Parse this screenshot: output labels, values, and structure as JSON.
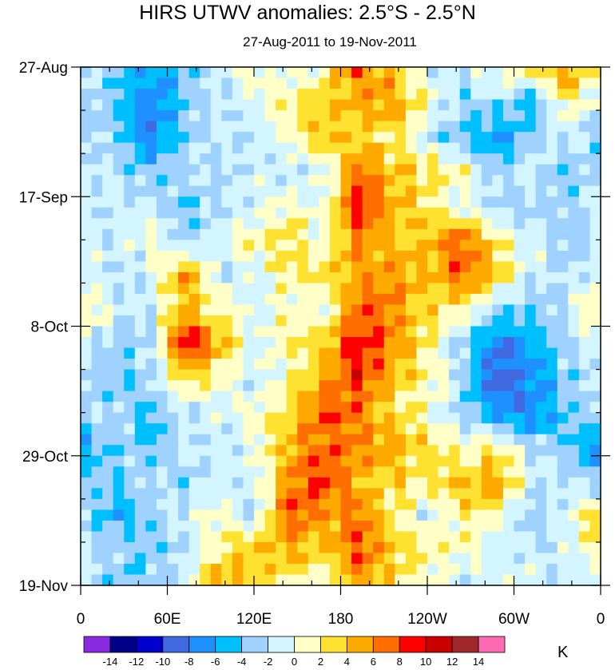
{
  "chart_data": {
    "type": "heatmap",
    "title": "HIRS UTWV anomalies: 2.5°S - 2.5°N",
    "subtitle": "27-Aug-2011 to 19-Nov-2011",
    "xlabel": "",
    "ylabel": "",
    "x_tick_labels": [
      "0",
      "60E",
      "120E",
      "180",
      "120W",
      "60W",
      "0"
    ],
    "y_tick_labels": [
      "27-Aug",
      "17-Sep",
      "8-Oct",
      "29-Oct",
      "19-Nov"
    ],
    "xlim_deg_east": [
      0,
      360
    ],
    "time_axis": "top-to-bottom, weekly minor ticks",
    "colorbar": {
      "unit": "K",
      "levels": [
        -14,
        -12,
        -10,
        -8,
        -6,
        -4,
        -2,
        0,
        2,
        4,
        6,
        8,
        10,
        12,
        14
      ],
      "colors": [
        "#8a2be2",
        "#00008b",
        "#0000cd",
        "#4169e1",
        "#1e90ff",
        "#00bfff",
        "#a0d2ff",
        "#d2f5ff",
        "#ffffc8",
        "#ffe132",
        "#ffaa00",
        "#ff6e00",
        "#ff0000",
        "#c80000",
        "#a02828",
        "#ff69b4"
      ],
      "labels": [
        "-14",
        "-12",
        "-10",
        "-8",
        "-6",
        "-4",
        "-2",
        "0",
        "2",
        "4",
        "6",
        "8",
        "10",
        "12",
        "14"
      ]
    },
    "grid_note": "rows = time (27-Aug to 19-Nov), cols = longitude 0..360E, approximate anomaly values in K",
    "values": [
      [
        -2,
        -3,
        -6,
        -3,
        -1,
        1,
        -1,
        2,
        8,
        3,
        -1,
        -2,
        1,
        3,
        6,
        0
      ],
      [
        -1,
        -4,
        -8,
        -4,
        -2,
        0,
        2,
        3,
        4,
        6,
        1,
        -3,
        -2,
        -6,
        2,
        -1
      ],
      [
        -2,
        -3,
        -8,
        -3,
        -1,
        -2,
        1,
        5,
        3,
        2,
        -2,
        -4,
        -7,
        -3,
        -1,
        -3
      ],
      [
        -1,
        -2,
        -4,
        -2,
        -3,
        -1,
        -2,
        -1,
        7,
        4,
        3,
        1,
        -3,
        -1,
        -4,
        -2
      ],
      [
        -3,
        -1,
        -2,
        -4,
        -2,
        -1,
        1,
        0,
        9,
        5,
        2,
        -1,
        -2,
        -3,
        -2,
        -1
      ],
      [
        -1,
        -2,
        1,
        -3,
        -1,
        2,
        3,
        0,
        6,
        3,
        4,
        8,
        2,
        -1,
        -3,
        -2
      ],
      [
        0,
        -2,
        -1,
        6,
        -2,
        -1,
        2,
        3,
        5,
        6,
        4,
        8,
        4,
        -1,
        -2,
        -1
      ],
      [
        2,
        -1,
        -2,
        4,
        2,
        -1,
        1,
        0,
        7,
        6,
        3,
        2,
        -3,
        -4,
        -2,
        3
      ],
      [
        -1,
        -3,
        -2,
        10,
        5,
        -1,
        2,
        3,
        10,
        6,
        2,
        -3,
        -8,
        -6,
        -2,
        -1
      ],
      [
        -2,
        -4,
        -3,
        3,
        1,
        -2,
        1,
        5,
        9,
        4,
        2,
        -2,
        -10,
        -7,
        -3,
        -2
      ],
      [
        -3,
        -2,
        -5,
        -2,
        -1,
        1,
        3,
        8,
        6,
        3,
        1,
        -3,
        -6,
        -8,
        -4,
        -2
      ],
      [
        -6,
        -3,
        -4,
        -1,
        -2,
        0,
        4,
        7,
        6,
        5,
        3,
        1,
        2,
        -2,
        -3,
        -8
      ],
      [
        -3,
        -4,
        -2,
        -3,
        -1,
        -2,
        6,
        9,
        4,
        3,
        2,
        4,
        6,
        -1,
        -2,
        -3
      ],
      [
        -2,
        -6,
        -3,
        -1,
        1,
        -2,
        8,
        5,
        7,
        2,
        -1,
        2,
        1,
        -3,
        -1,
        4
      ],
      [
        -1,
        -3,
        -4,
        -2,
        2,
        4,
        5,
        3,
        8,
        4,
        2,
        1,
        -1,
        -2,
        -1,
        2
      ],
      [
        -2,
        -4,
        -3,
        -1,
        6,
        3,
        2,
        -1,
        5,
        2,
        1,
        -2,
        -1,
        1,
        -3,
        0
      ]
    ]
  }
}
